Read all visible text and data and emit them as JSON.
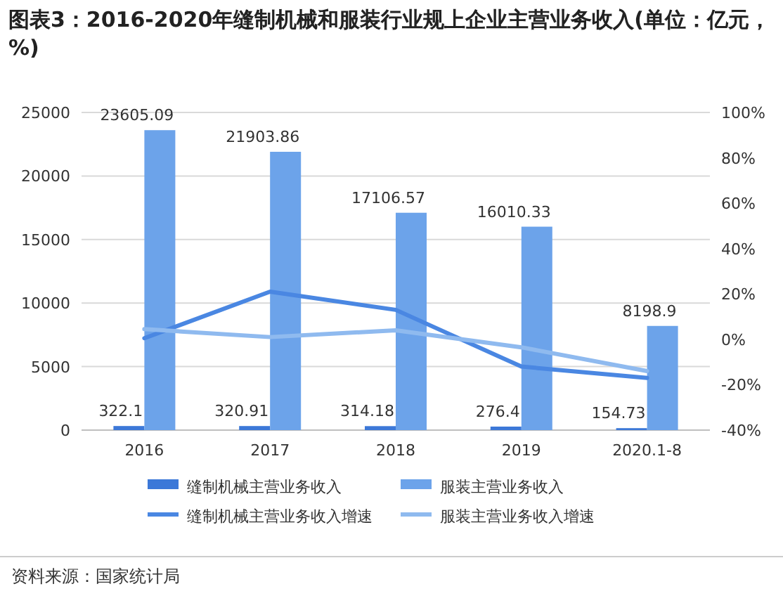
{
  "chart_data": {
    "type": "bar",
    "title": "图表3：2016-2020年缝制机械和服装行业规上企业主营业务收入(单位：亿元，%)",
    "categories": [
      "2016",
      "2017",
      "2018",
      "2019",
      "2020.1-8"
    ],
    "series": [
      {
        "name": "缝制机械主营业务收入",
        "type": "bar",
        "color": "#3c78d8",
        "values": [
          322.1,
          320.91,
          314.18,
          276.4,
          154.73
        ],
        "value_labels": [
          "322.1",
          "320.91",
          "314.18",
          "276.4",
          "154.73"
        ]
      },
      {
        "name": "服装主营业务收入",
        "type": "bar",
        "color": "#6ca3ea",
        "values": [
          23605.09,
          21903.86,
          17106.57,
          16010.33,
          8198.9
        ],
        "value_labels": [
          "23605.09",
          "21903.86",
          "17106.57",
          "16010.33",
          "8198.9"
        ]
      },
      {
        "name": "缝制机械主营业务收入增速",
        "type": "line",
        "axis": "y2",
        "color": "#4a87e2",
        "values": [
          0.5,
          21,
          13,
          -12,
          -17
        ]
      },
      {
        "name": "服装主营业务收入增速",
        "type": "line",
        "axis": "y2",
        "color": "#8fbaef",
        "values": [
          4.5,
          1,
          4,
          -3.5,
          -14
        ]
      }
    ],
    "ylim": [
      0,
      25000
    ],
    "yticks": [
      0,
      5000,
      10000,
      15000,
      20000,
      25000
    ],
    "y2lim": [
      -40,
      100
    ],
    "y2ticks": [
      {
        "value": -40,
        "label": "-40%"
      },
      {
        "value": -20,
        "label": "-20%"
      },
      {
        "value": 0,
        "label": "0%"
      },
      {
        "value": 20,
        "label": "20%"
      },
      {
        "value": 40,
        "label": "40%"
      },
      {
        "value": 60,
        "label": "60%"
      },
      {
        "value": 80,
        "label": "80%"
      },
      {
        "value": 100,
        "label": "100%"
      }
    ],
    "grid": "y",
    "legend": "bottom",
    "annotations": [
      "资料来源：国家统计局"
    ]
  }
}
